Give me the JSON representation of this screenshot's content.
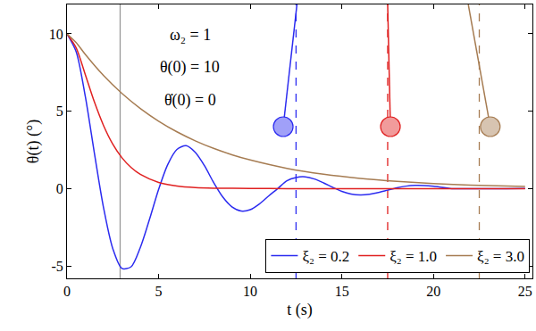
{
  "chart_data": {
    "type": "line",
    "xlabel": "t (s)",
    "ylabel": "θ(t) (°)",
    "annotations": [
      "ω₂ = 1",
      "θ(0) = 10",
      "θ̇(0) = 0"
    ],
    "xlim": [
      0,
      25.4
    ],
    "ylim": [
      -5.8,
      11.9
    ],
    "xticks": [
      0,
      5,
      10,
      15,
      20,
      25
    ],
    "yticks": [
      -5,
      0,
      5,
      10
    ],
    "grid": false,
    "legend": "lower right",
    "series": [
      {
        "name": "ξ₂ = 0.2",
        "color": "#2b2bf0",
        "x": [
          0,
          0.5,
          1,
          1.5,
          2,
          2.5,
          3,
          3.5,
          4,
          4.5,
          5,
          5.5,
          6,
          6.5,
          7,
          7.5,
          8,
          8.5,
          9,
          9.5,
          10,
          10.5,
          11,
          11.5,
          12,
          12.5,
          13,
          13.5,
          14,
          14.5,
          15,
          15.5,
          16,
          16.5,
          17,
          17.5,
          18,
          18.5,
          19,
          19.5,
          20,
          21,
          22,
          23,
          24,
          25
        ],
        "values": [
          10,
          8.85,
          5.95,
          2.25,
          -1.27,
          -3.88,
          -5.16,
          -5.05,
          -3.81,
          -2.0,
          -0.05,
          1.56,
          2.53,
          2.77,
          2.34,
          1.48,
          0.4,
          -0.54,
          -1.18,
          -1.45,
          -1.36,
          -0.99,
          -0.48,
          0.0,
          0.51,
          0.72,
          0.76,
          0.62,
          0.37,
          0.08,
          -0.18,
          -0.35,
          -0.41,
          -0.37,
          -0.25,
          -0.1,
          0.05,
          0.16,
          0.21,
          0.2,
          0.15,
          0.0,
          -0.01,
          -0.01,
          0.0,
          0.01
        ]
      },
      {
        "name": "ξ₂ = 1.0",
        "color": "#e02020",
        "x": [
          0,
          0.5,
          1,
          1.5,
          2,
          2.5,
          3,
          3.5,
          4,
          5,
          6,
          7,
          8,
          10,
          12,
          15,
          20,
          25
        ],
        "values": [
          10,
          9.1,
          7.36,
          5.58,
          4.06,
          2.87,
          1.99,
          1.36,
          0.92,
          0.4,
          0.17,
          0.07,
          0.03,
          0.01,
          0,
          0,
          0,
          0
        ]
      },
      {
        "name": "ξ₂ = 3.0",
        "color": "#a67c52",
        "x": [
          0,
          0.5,
          1,
          2,
          3,
          4,
          5,
          6,
          7,
          8,
          9,
          10,
          12,
          14,
          16,
          18,
          20,
          22,
          25
        ],
        "values": [
          10,
          9.44,
          8.67,
          7.3,
          6.15,
          5.18,
          4.36,
          3.67,
          3.09,
          2.6,
          2.19,
          1.85,
          1.31,
          0.93,
          0.66,
          0.47,
          0.33,
          0.23,
          0.14
        ]
      }
    ],
    "vlines": [
      {
        "x": 2.9,
        "color": "#999999",
        "line_style": "solid"
      },
      {
        "x": 12.5,
        "color": "#2b2bf0",
        "line_style": "dash"
      },
      {
        "x": 17.5,
        "color": "#e02020",
        "line_style": "dash"
      },
      {
        "x": 22.5,
        "color": "#a67c52",
        "line_style": "dash"
      }
    ],
    "pendulums": [
      {
        "color": "#2b2bf0",
        "x": [
          12.55,
          11.8
        ],
        "y": [
          11.9,
          4
        ]
      },
      {
        "color": "#e02020",
        "x": [
          17.5,
          17.65
        ],
        "y": [
          11.9,
          4
        ]
      },
      {
        "color": "#a67c52",
        "x": [
          21.9,
          23.1
        ],
        "y": [
          11.9,
          4
        ]
      }
    ]
  }
}
